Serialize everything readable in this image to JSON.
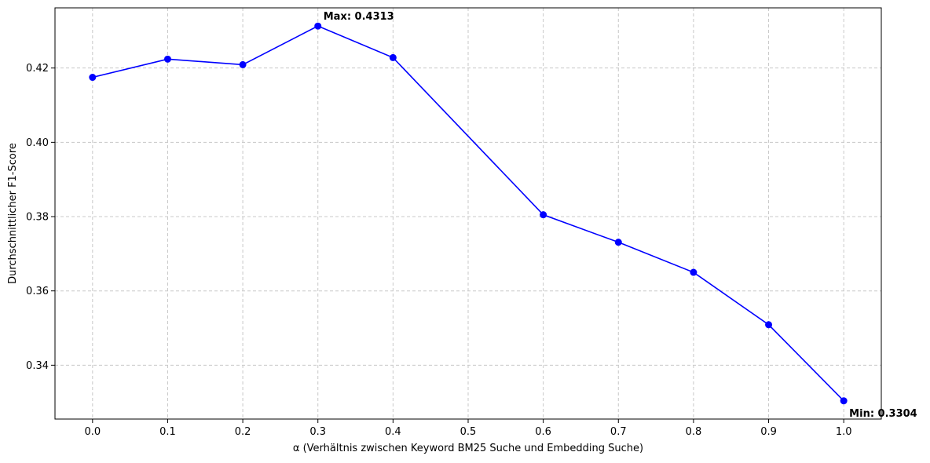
{
  "chart_data": {
    "type": "line",
    "xlabel": "α (Verhältnis zwischen Keyword BM25 Suche und Embedding Suche)",
    "ylabel": "Durchschnittlicher F1-Score",
    "x": [
      0.0,
      0.1,
      0.2,
      0.3,
      0.4,
      0.6,
      0.7,
      0.8,
      0.9,
      1.0
    ],
    "series": [
      {
        "values": [
          0.4175,
          0.4224,
          0.4209,
          0.4313,
          0.4228,
          0.3805,
          0.3731,
          0.365,
          0.3509,
          0.3304
        ],
        "color": "#0000ff"
      }
    ],
    "xticks": [
      "0.0",
      "0.1",
      "0.2",
      "0.3",
      "0.4",
      "0.5",
      "0.6",
      "0.7",
      "0.8",
      "0.9",
      "1.0"
    ],
    "yticks": [
      "0.34",
      "0.36",
      "0.38",
      "0.40",
      "0.42"
    ],
    "xlim": [
      -0.05,
      1.05
    ],
    "ylim": [
      0.3255,
      0.4362
    ],
    "grid": true,
    "annotations": [
      {
        "text": "Max: 0.4313",
        "x": 0.3,
        "y": 0.4313
      },
      {
        "text": "Min: 0.3304",
        "x": 1.0,
        "y": 0.3304
      }
    ]
  }
}
